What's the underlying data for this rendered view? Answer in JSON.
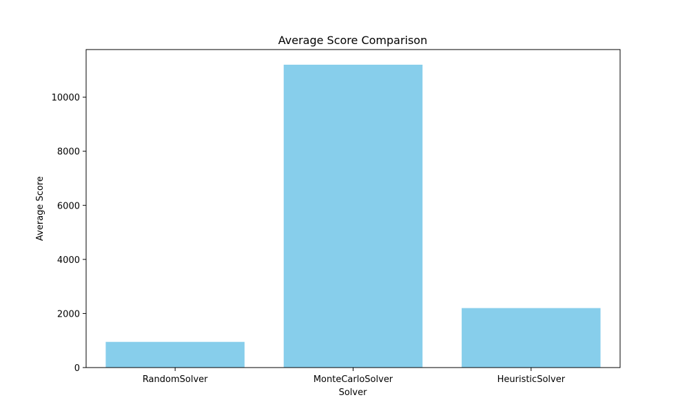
{
  "chart_data": {
    "type": "bar",
    "title": "Average Score Comparison",
    "xlabel": "Solver",
    "ylabel": "Average Score",
    "categories": [
      "RandomSolver",
      "MonteCarloSolver",
      "HeuristicSolver"
    ],
    "values": [
      950,
      11200,
      2200
    ],
    "ylim": [
      0,
      11760
    ],
    "yticks": [
      0,
      2000,
      4000,
      6000,
      8000,
      10000
    ],
    "ytick_labels": [
      "0",
      "2000",
      "4000",
      "6000",
      "8000",
      "10000"
    ],
    "bar_color": "#87CEEB",
    "grid": false,
    "legend": "none"
  }
}
